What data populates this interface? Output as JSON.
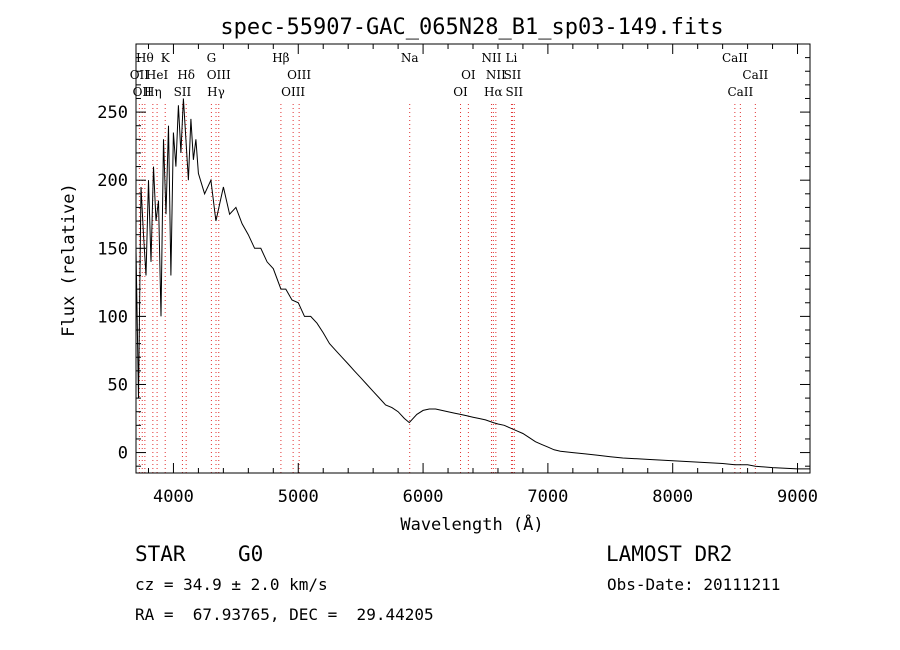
{
  "chart_data": {
    "type": "line",
    "title": "spec-55907-GAC_065N28_B1_sp03-149.fits",
    "xlabel": "Wavelength (Å)",
    "ylabel": "Flux (relative)",
    "xlim": [
      3700,
      9100
    ],
    "ylim": [
      -15,
      300
    ],
    "xticks": [
      4000,
      5000,
      6000,
      7000,
      8000,
      9000
    ],
    "yticks": [
      0,
      50,
      100,
      150,
      200,
      250
    ],
    "grid": false,
    "line_color": "#000000",
    "marker_color": "#e03030",
    "series": [
      {
        "x": [
          3700,
          3720,
          3740,
          3760,
          3780,
          3800,
          3820,
          3840,
          3860,
          3880,
          3900,
          3920,
          3940,
          3960,
          3980,
          4000,
          4020,
          4040,
          4060,
          4080,
          4100,
          4120,
          4140,
          4160,
          4180,
          4200,
          4250,
          4300,
          4340,
          4400,
          4450,
          4500,
          4550,
          4600,
          4650,
          4700,
          4750,
          4800,
          4861,
          4900,
          4950,
          5000,
          5050,
          5100,
          5150,
          5200,
          5250,
          5300,
          5350,
          5400,
          5450,
          5500,
          5550,
          5600,
          5650,
          5700,
          5750,
          5800,
          5850,
          5890,
          5950,
          6000,
          6050,
          6100,
          6150,
          6200,
          6250,
          6300,
          6350,
          6400,
          6450,
          6500,
          6563,
          6600,
          6650,
          6700,
          6750,
          6800,
          6850,
          6900,
          6950,
          7000,
          7050,
          7100,
          7200,
          7300,
          7400,
          7500,
          7600,
          7800,
          8000,
          8200,
          8400,
          8498,
          8542,
          8600,
          8662,
          8800,
          9000,
          9100
        ],
        "values": [
          150,
          40,
          195,
          160,
          130,
          200,
          140,
          210,
          170,
          185,
          100,
          230,
          175,
          240,
          130,
          235,
          210,
          255,
          220,
          260,
          230,
          200,
          245,
          215,
          230,
          205,
          190,
          200,
          170,
          195,
          175,
          180,
          168,
          160,
          150,
          150,
          140,
          135,
          120,
          120,
          112,
          110,
          100,
          100,
          95,
          88,
          80,
          75,
          70,
          65,
          60,
          55,
          50,
          45,
          40,
          35,
          33,
          30,
          25,
          22,
          28,
          31,
          32,
          32,
          31,
          30,
          29,
          28,
          27,
          26,
          25,
          24,
          22,
          21,
          20,
          18,
          16,
          14,
          11,
          8,
          6,
          4,
          2,
          1,
          0,
          -1,
          -2,
          -3,
          -4,
          -5,
          -6,
          -7,
          -8,
          -9,
          -9,
          -9,
          -10,
          -11,
          -12,
          -12
        ]
      }
    ],
    "line_markers": [
      {
        "wavelength": 3727,
        "label": "OII",
        "row": 1
      },
      {
        "wavelength": 3750,
        "label": "OII",
        "row": 2
      },
      {
        "wavelength": 3771,
        "label": "Hθ",
        "row": 0
      },
      {
        "wavelength": 3835,
        "label": "Hη",
        "row": 2
      },
      {
        "wavelength": 3869,
        "label": "HeI",
        "row": 1
      },
      {
        "wavelength": 3934,
        "label": "K",
        "row": 0
      },
      {
        "wavelength": 4072,
        "label": "SII",
        "row": 2
      },
      {
        "wavelength": 4102,
        "label": "Hδ",
        "row": 1
      },
      {
        "wavelength": 4304,
        "label": "G",
        "row": 0
      },
      {
        "wavelength": 4341,
        "label": "Hγ",
        "row": 2
      },
      {
        "wavelength": 4363,
        "label": "OIII",
        "row": 1
      },
      {
        "wavelength": 4861,
        "label": "Hβ",
        "row": 0
      },
      {
        "wavelength": 4959,
        "label": "OIII",
        "row": 2
      },
      {
        "wavelength": 5007,
        "label": "OIII",
        "row": 1
      },
      {
        "wavelength": 5893,
        "label": "Na",
        "row": 0
      },
      {
        "wavelength": 6300,
        "label": "OI",
        "row": 2
      },
      {
        "wavelength": 6363,
        "label": "OI",
        "row": 1
      },
      {
        "wavelength": 6548,
        "label": "NII",
        "row": 0
      },
      {
        "wavelength": 6563,
        "label": "Hα",
        "row": 2
      },
      {
        "wavelength": 6583,
        "label": "NII",
        "row": 1
      },
      {
        "wavelength": 6708,
        "label": "Li",
        "row": 0
      },
      {
        "wavelength": 6716,
        "label": "SII",
        "row": 1
      },
      {
        "wavelength": 6731,
        "label": "SII",
        "row": 2
      },
      {
        "wavelength": 8498,
        "label": "CaII",
        "row": 0
      },
      {
        "wavelength": 8542,
        "label": "CaII",
        "row": 2
      },
      {
        "wavelength": 8662,
        "label": "CaII",
        "row": 1
      }
    ]
  },
  "info": {
    "class_label": "STAR",
    "subclass_label": "G0",
    "survey_label": "LAMOST DR2",
    "redshift_text": "cz = 34.9 ± 2.0 km/s",
    "obs_date_text": "Obs-Date: 20111211",
    "coords_text": "RA =  67.93765, DEC =  29.44205"
  }
}
